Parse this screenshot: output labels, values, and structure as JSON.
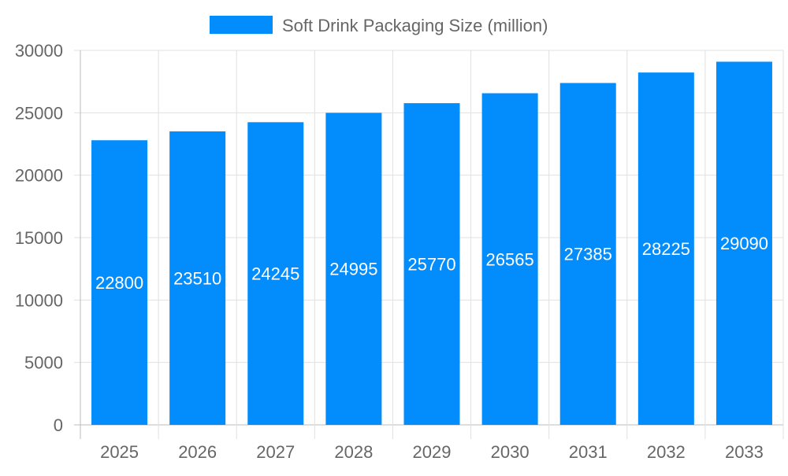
{
  "chart_data": {
    "type": "bar",
    "title": "",
    "xlabel": "",
    "ylabel": "",
    "categories": [
      "2025",
      "2026",
      "2027",
      "2028",
      "2029",
      "2030",
      "2031",
      "2032",
      "2033"
    ],
    "series": [
      {
        "name": "Soft Drink Packaging Size (million)",
        "values": [
          22800,
          23510,
          24245,
          24995,
          25770,
          26565,
          27385,
          28225,
          29090
        ],
        "color": "#038cfc"
      }
    ],
    "ylim": [
      0,
      30000
    ],
    "yticks": [
      0,
      5000,
      10000,
      15000,
      20000,
      25000,
      30000
    ],
    "grid": true,
    "legend": "top-center",
    "data_labels": true
  }
}
